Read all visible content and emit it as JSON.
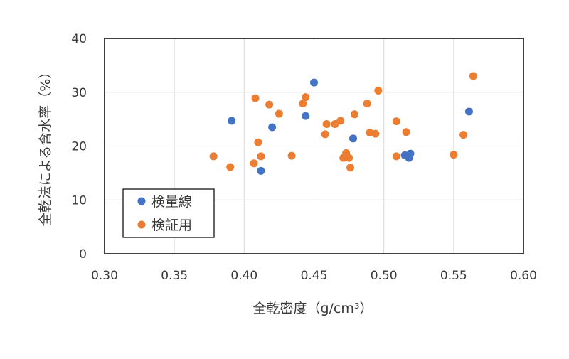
{
  "chart_data": {
    "type": "scatter",
    "title": "",
    "xlabel": "全乾密度（g/cm³）",
    "ylabel": "全乾法による含水率（%）",
    "xlim": [
      0.3,
      0.6
    ],
    "ylim": [
      0,
      40
    ],
    "x_ticks": [
      "0.30",
      "0.35",
      "0.40",
      "0.45",
      "0.50",
      "0.55",
      "0.60"
    ],
    "y_ticks": [
      "0",
      "10",
      "20",
      "30",
      "40"
    ],
    "grid": true,
    "legend_position": "bottom-left",
    "series": [
      {
        "name": "検量線",
        "color": "#4472C4",
        "points": [
          {
            "x": 0.391,
            "y": 24.7
          },
          {
            "x": 0.412,
            "y": 15.4
          },
          {
            "x": 0.42,
            "y": 23.5
          },
          {
            "x": 0.444,
            "y": 25.6
          },
          {
            "x": 0.45,
            "y": 31.8
          },
          {
            "x": 0.478,
            "y": 21.4
          },
          {
            "x": 0.515,
            "y": 18.3
          },
          {
            "x": 0.518,
            "y": 17.8
          },
          {
            "x": 0.519,
            "y": 18.6
          },
          {
            "x": 0.561,
            "y": 26.4
          }
        ]
      },
      {
        "name": "検証用",
        "color": "#ED7D31",
        "points": [
          {
            "x": 0.378,
            "y": 18.1
          },
          {
            "x": 0.39,
            "y": 16.1
          },
          {
            "x": 0.407,
            "y": 16.8
          },
          {
            "x": 0.408,
            "y": 28.9
          },
          {
            "x": 0.41,
            "y": 20.7
          },
          {
            "x": 0.412,
            "y": 18.1
          },
          {
            "x": 0.418,
            "y": 27.7
          },
          {
            "x": 0.425,
            "y": 26.0
          },
          {
            "x": 0.434,
            "y": 18.2
          },
          {
            "x": 0.442,
            "y": 27.9
          },
          {
            "x": 0.444,
            "y": 29.1
          },
          {
            "x": 0.458,
            "y": 22.2
          },
          {
            "x": 0.459,
            "y": 24.1
          },
          {
            "x": 0.465,
            "y": 24.1
          },
          {
            "x": 0.469,
            "y": 24.7
          },
          {
            "x": 0.471,
            "y": 17.8
          },
          {
            "x": 0.473,
            "y": 18.7
          },
          {
            "x": 0.475,
            "y": 17.8
          },
          {
            "x": 0.476,
            "y": 16.0
          },
          {
            "x": 0.479,
            "y": 25.9
          },
          {
            "x": 0.488,
            "y": 27.9
          },
          {
            "x": 0.49,
            "y": 22.5
          },
          {
            "x": 0.494,
            "y": 22.3
          },
          {
            "x": 0.496,
            "y": 30.3
          },
          {
            "x": 0.509,
            "y": 24.6
          },
          {
            "x": 0.509,
            "y": 18.1
          },
          {
            "x": 0.516,
            "y": 22.6
          },
          {
            "x": 0.55,
            "y": 18.4
          },
          {
            "x": 0.557,
            "y": 22.1
          },
          {
            "x": 0.564,
            "y": 33.0
          }
        ]
      }
    ]
  }
}
